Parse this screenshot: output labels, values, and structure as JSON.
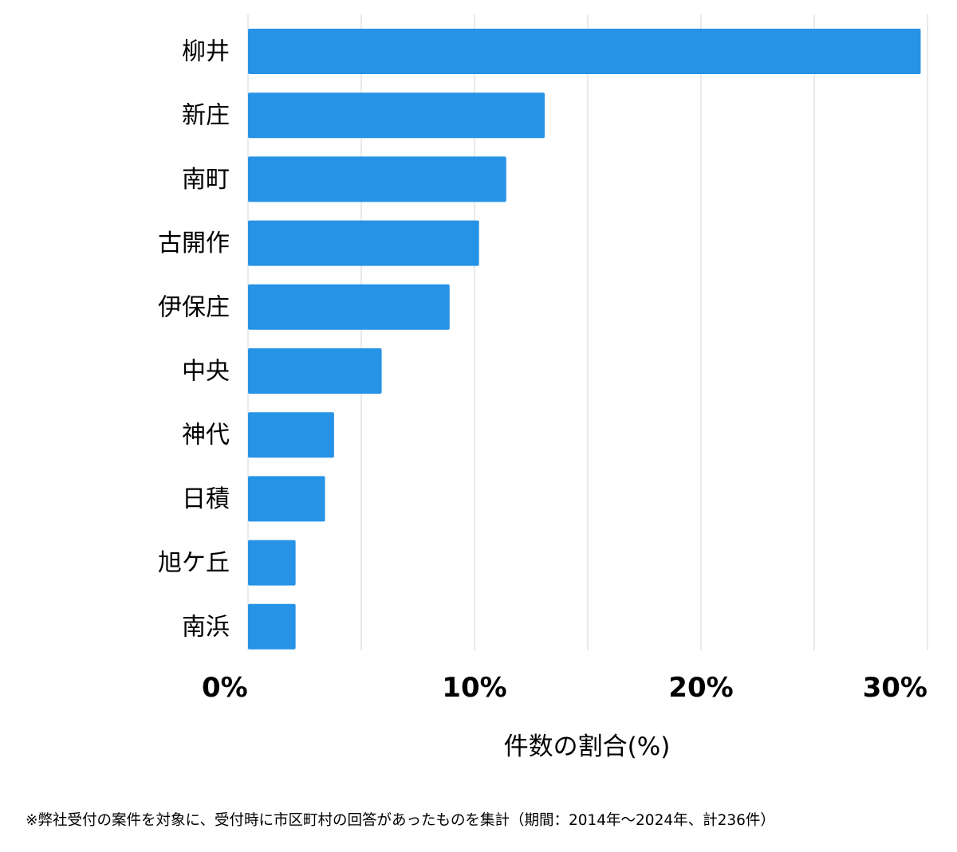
{
  "chart_data": {
    "type": "bar",
    "orientation": "horizontal",
    "categories": [
      "柳井",
      "新庄",
      "南町",
      "古開作",
      "伊保庄",
      "中央",
      "神代",
      "日積",
      "旭ケ丘",
      "南浜"
    ],
    "values": [
      29.7,
      13.1,
      11.4,
      10.2,
      8.9,
      5.9,
      3.8,
      3.4,
      2.1,
      2.1
    ],
    "xlabel": "件数の割合(%)",
    "ylabel": "",
    "xlim": [
      0,
      30
    ],
    "xticks": [
      0,
      10,
      20,
      30
    ],
    "xtick_labels": [
      "0%",
      "10%",
      "20%",
      "30%"
    ],
    "grid": true,
    "bar_color": "#2793e6",
    "grid_color": "#dddddd"
  },
  "footnote": "※弊社受付の案件を対象に、受付時に市区町村の回答があったものを集計（期間：2014年～2024年、計236件）"
}
